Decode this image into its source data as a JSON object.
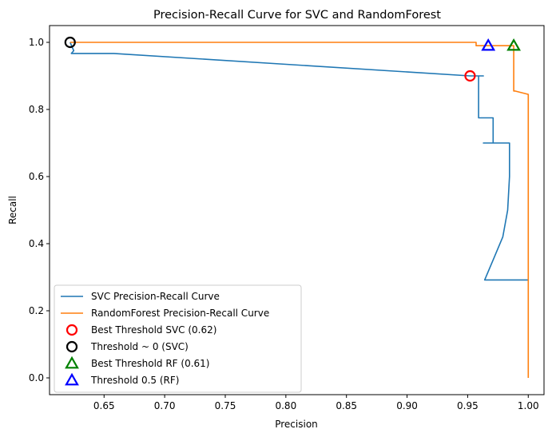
{
  "chart_data": {
    "type": "line",
    "title": "Precision-Recall Curve for SVC and RandomForest",
    "xlabel": "Precision",
    "ylabel": "Recall",
    "xlim": [
      0.605,
      1.013
    ],
    "ylim": [
      -0.05,
      1.05
    ],
    "xticks": [
      0.65,
      0.7,
      0.75,
      0.8,
      0.85,
      0.9,
      0.95,
      1.0
    ],
    "xtick_labels": [
      "0.65",
      "0.70",
      "0.75",
      "0.80",
      "0.85",
      "0.90",
      "0.95",
      "1.00"
    ],
    "yticks": [
      0.0,
      0.2,
      0.4,
      0.6,
      0.8,
      1.0
    ],
    "ytick_labels": [
      "0.0",
      "0.2",
      "0.4",
      "0.6",
      "0.8",
      "1.0"
    ],
    "grid": false,
    "legend_position": "lower-left",
    "series": [
      {
        "name": "SVC Precision-Recall Curve",
        "kind": "line",
        "color": "#1f77b4",
        "x": [
          0.622,
          0.625,
          0.623,
          0.658,
          0.952,
          0.955,
          0.963,
          0.959,
          0.959,
          0.971,
          0.971,
          0.963,
          0.963,
          0.9705,
          0.9705,
          0.9845,
          0.9845,
          0.983,
          0.979,
          0.972,
          0.964,
          1.0,
          1.0
        ],
        "y": [
          1.0,
          0.975,
          0.967,
          0.967,
          0.9,
          0.9,
          0.9,
          0.9,
          0.775,
          0.775,
          0.7,
          0.7,
          0.7,
          0.7,
          0.7,
          0.7,
          0.6,
          0.5,
          0.42,
          0.36,
          0.292,
          0.292,
          0.292
        ]
      },
      {
        "name": "RandomForest Precision-Recall Curve",
        "kind": "line",
        "color": "#ff7f0e",
        "x": [
          0.622,
          0.957,
          0.957,
          0.988,
          0.988,
          0.989,
          1.0,
          1.0
        ],
        "y": [
          1.0,
          1.0,
          0.99,
          0.99,
          0.855,
          0.855,
          0.845,
          0.0
        ]
      },
      {
        "name": "Best Threshold SVC (0.62)",
        "kind": "marker",
        "marker": "circle",
        "color": "#ff0000",
        "x": [
          0.952
        ],
        "y": [
          0.9
        ]
      },
      {
        "name": "Threshold ~ 0 (SVC)",
        "kind": "marker",
        "marker": "circle",
        "color": "#000000",
        "x": [
          0.622
        ],
        "y": [
          1.0
        ]
      },
      {
        "name": "Best Threshold RF (0.61)",
        "kind": "marker",
        "marker": "triangle",
        "color": "#008000",
        "x": [
          0.988
        ],
        "y": [
          0.99
        ]
      },
      {
        "name": "Threshold 0.5 (RF)",
        "kind": "marker",
        "marker": "triangle",
        "color": "#0000ff",
        "x": [
          0.967
        ],
        "y": [
          0.99
        ]
      }
    ]
  }
}
